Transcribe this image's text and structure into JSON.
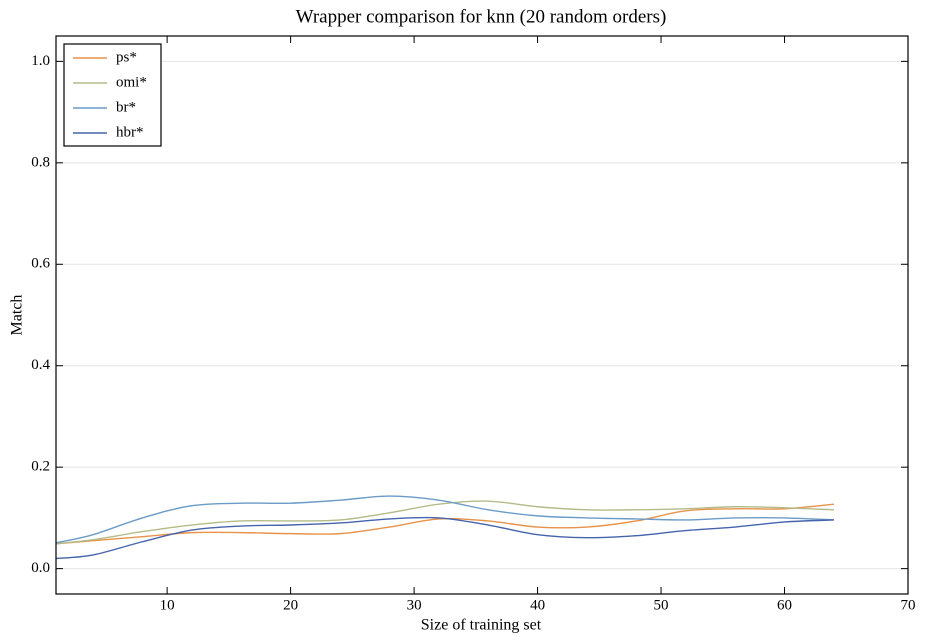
{
  "chart_data": {
    "type": "line",
    "title": "Wrapper comparison for knn (20 random orders)",
    "x_label": "Size of training set",
    "y_label": "Match",
    "x": [
      1,
      4,
      8,
      12,
      16,
      20,
      24,
      28,
      32,
      36,
      40,
      44,
      48,
      52,
      56,
      60,
      64
    ],
    "series": [
      {
        "name": "ps*",
        "color": "#e8924a",
        "values": [
          0.049,
          0.055,
          0.063,
          0.071,
          0.071,
          0.069,
          0.069,
          0.082,
          0.098,
          0.094,
          0.082,
          0.082,
          0.094,
          0.114,
          0.118,
          0.118,
          0.127
        ]
      },
      {
        "name": "omi*",
        "color": "#b3bb88",
        "values": [
          0.049,
          0.057,
          0.073,
          0.086,
          0.094,
          0.094,
          0.096,
          0.11,
          0.127,
          0.133,
          0.122,
          0.116,
          0.116,
          0.118,
          0.122,
          0.12,
          0.116
        ]
      },
      {
        "name": "br*",
        "color": "#6b9bc8",
        "values": [
          0.051,
          0.067,
          0.1,
          0.124,
          0.129,
          0.129,
          0.135,
          0.143,
          0.135,
          0.116,
          0.104,
          0.1,
          0.098,
          0.096,
          0.1,
          0.1,
          0.096
        ]
      },
      {
        "name": "hbr*",
        "color": "#4564ac",
        "values": [
          0.02,
          0.027,
          0.053,
          0.076,
          0.084,
          0.086,
          0.09,
          0.098,
          0.1,
          0.086,
          0.067,
          0.061,
          0.065,
          0.075,
          0.082,
          0.092,
          0.096
        ]
      }
    ],
    "xlim": [
      1,
      70
    ],
    "xticks": [
      10,
      20,
      30,
      40,
      50,
      60,
      70
    ],
    "ylim": [
      -0.05,
      1.05
    ],
    "yticks": [
      {
        "value": 0.0,
        "label": "0.0"
      },
      0.2,
      0.4,
      0.6,
      0.8,
      {
        "value": 1.0,
        "label": "1.0"
      }
    ],
    "grid": true,
    "legend": "upper-left"
  }
}
